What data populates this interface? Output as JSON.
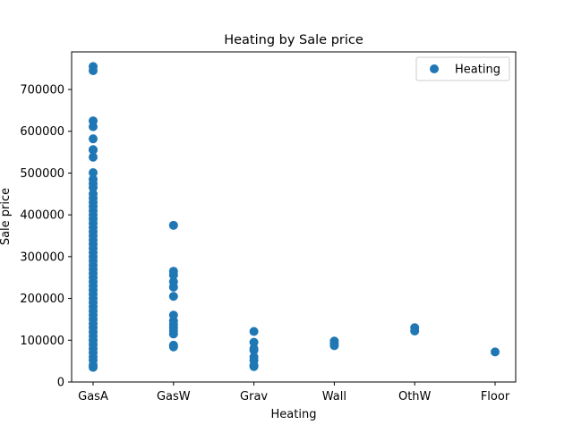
{
  "chart_data": {
    "type": "scatter",
    "title": "Heating by Sale price",
    "xlabel": "Heating",
    "ylabel": "Sale price",
    "categories": [
      "GasA",
      "GasW",
      "Grav",
      "Wall",
      "OthW",
      "Floor"
    ],
    "ylim": [
      0,
      790000
    ],
    "yticks": [
      0,
      100000,
      200000,
      300000,
      400000,
      500000,
      600000,
      700000
    ],
    "ytick_labels": [
      "0",
      "100000",
      "200000",
      "300000",
      "400000",
      "500000",
      "600000",
      "700000"
    ],
    "grid": false,
    "legend": {
      "position": "top-right",
      "entries": [
        "Heating"
      ]
    },
    "series": [
      {
        "name": "Heating",
        "color": "#1f77b4",
        "points": [
          {
            "x": "GasA",
            "y": 755000
          },
          {
            "x": "GasA",
            "y": 745000
          },
          {
            "x": "GasA",
            "y": 625000
          },
          {
            "x": "GasA",
            "y": 611000
          },
          {
            "x": "GasA",
            "y": 582000
          },
          {
            "x": "GasA",
            "y": 556000
          },
          {
            "x": "GasA",
            "y": 555000
          },
          {
            "x": "GasA",
            "y": 538000
          },
          {
            "x": "GasA",
            "y": 501000
          },
          {
            "x": "GasA",
            "y": 485000
          },
          {
            "x": "GasA",
            "y": 475000
          },
          {
            "x": "GasA",
            "y": 465000
          },
          {
            "x": "GasA",
            "y": 450000
          },
          {
            "x": "GasA",
            "y": 440000
          },
          {
            "x": "GasA",
            "y": 430000
          },
          {
            "x": "GasA",
            "y": 420000
          },
          {
            "x": "GasA",
            "y": 410000
          },
          {
            "x": "GasA",
            "y": 400000
          },
          {
            "x": "GasA",
            "y": 390000
          },
          {
            "x": "GasA",
            "y": 380000
          },
          {
            "x": "GasA",
            "y": 370000
          },
          {
            "x": "GasA",
            "y": 360000
          },
          {
            "x": "GasA",
            "y": 350000
          },
          {
            "x": "GasA",
            "y": 340000
          },
          {
            "x": "GasA",
            "y": 330000
          },
          {
            "x": "GasA",
            "y": 320000
          },
          {
            "x": "GasA",
            "y": 310000
          },
          {
            "x": "GasA",
            "y": 300000
          },
          {
            "x": "GasA",
            "y": 290000
          },
          {
            "x": "GasA",
            "y": 280000
          },
          {
            "x": "GasA",
            "y": 270000
          },
          {
            "x": "GasA",
            "y": 260000
          },
          {
            "x": "GasA",
            "y": 250000
          },
          {
            "x": "GasA",
            "y": 240000
          },
          {
            "x": "GasA",
            "y": 230000
          },
          {
            "x": "GasA",
            "y": 220000
          },
          {
            "x": "GasA",
            "y": 210000
          },
          {
            "x": "GasA",
            "y": 200000
          },
          {
            "x": "GasA",
            "y": 190000
          },
          {
            "x": "GasA",
            "y": 180000
          },
          {
            "x": "GasA",
            "y": 170000
          },
          {
            "x": "GasA",
            "y": 160000
          },
          {
            "x": "GasA",
            "y": 150000
          },
          {
            "x": "GasA",
            "y": 140000
          },
          {
            "x": "GasA",
            "y": 130000
          },
          {
            "x": "GasA",
            "y": 120000
          },
          {
            "x": "GasA",
            "y": 110000
          },
          {
            "x": "GasA",
            "y": 100000
          },
          {
            "x": "GasA",
            "y": 90000
          },
          {
            "x": "GasA",
            "y": 80000
          },
          {
            "x": "GasA",
            "y": 70000
          },
          {
            "x": "GasA",
            "y": 60000
          },
          {
            "x": "GasA",
            "y": 52000
          },
          {
            "x": "GasA",
            "y": 40000
          },
          {
            "x": "GasA",
            "y": 35000
          },
          {
            "x": "GasW",
            "y": 375000
          },
          {
            "x": "GasW",
            "y": 265000
          },
          {
            "x": "GasW",
            "y": 256000
          },
          {
            "x": "GasW",
            "y": 240000
          },
          {
            "x": "GasW",
            "y": 227000
          },
          {
            "x": "GasW",
            "y": 205000
          },
          {
            "x": "GasW",
            "y": 160000
          },
          {
            "x": "GasW",
            "y": 146000
          },
          {
            "x": "GasW",
            "y": 138000
          },
          {
            "x": "GasW",
            "y": 130000
          },
          {
            "x": "GasW",
            "y": 123000
          },
          {
            "x": "GasW",
            "y": 115000
          },
          {
            "x": "GasW",
            "y": 88000
          },
          {
            "x": "GasW",
            "y": 84000
          },
          {
            "x": "Grav",
            "y": 121000
          },
          {
            "x": "Grav",
            "y": 95000
          },
          {
            "x": "Grav",
            "y": 80000
          },
          {
            "x": "Grav",
            "y": 76000
          },
          {
            "x": "Grav",
            "y": 60000
          },
          {
            "x": "Grav",
            "y": 52000
          },
          {
            "x": "Grav",
            "y": 40000
          },
          {
            "x": "Grav",
            "y": 37000
          },
          {
            "x": "Wall",
            "y": 98000
          },
          {
            "x": "Wall",
            "y": 92000
          },
          {
            "x": "Wall",
            "y": 87000
          },
          {
            "x": "OthW",
            "y": 130000
          },
          {
            "x": "OthW",
            "y": 122000
          },
          {
            "x": "Floor",
            "y": 72000
          }
        ]
      }
    ]
  }
}
